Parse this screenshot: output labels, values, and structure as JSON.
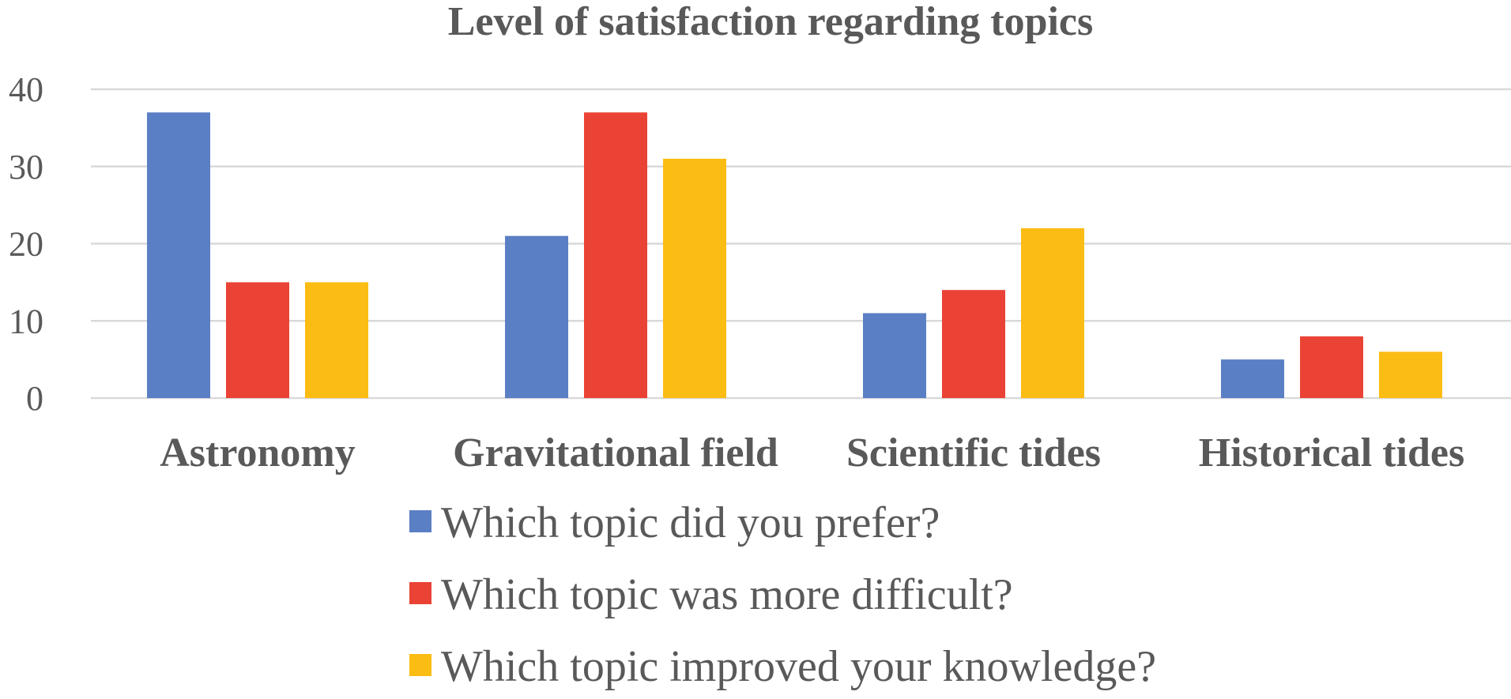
{
  "chart_data": {
    "type": "bar",
    "title": "Level of satisfaction regarding topics",
    "xlabel": "",
    "ylabel": "",
    "categories": [
      "Astronomy",
      "Gravitational field",
      "Scientific tides",
      "Historical tides"
    ],
    "series": [
      {
        "name": "Which topic did you prefer?",
        "values": [
          37,
          21,
          11,
          5
        ],
        "color": "#5b7fc4"
      },
      {
        "name": "Which topic was more difficult?",
        "values": [
          15,
          37,
          14,
          8
        ],
        "color": "#ea4335"
      },
      {
        "name": "Which topic improved your knowledge?",
        "values": [
          15,
          31,
          22,
          6
        ],
        "color": "#fbbc13"
      }
    ],
    "ylim": [
      0,
      40
    ],
    "yticks": [
      0,
      10,
      20,
      30,
      40
    ],
    "grid": true,
    "legend_position": "bottom"
  }
}
